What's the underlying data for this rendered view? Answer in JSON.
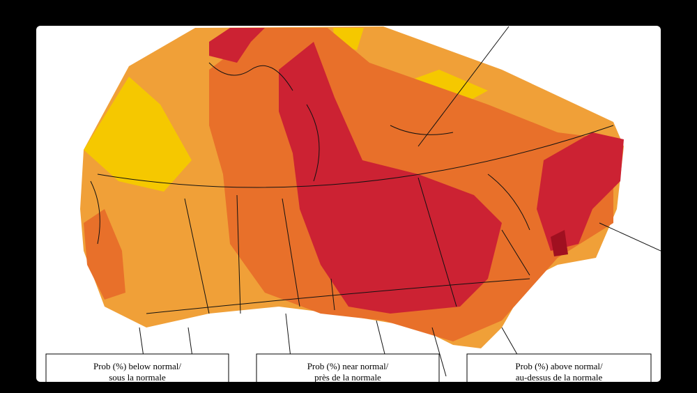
{
  "legend": [
    {
      "line1": "Prob (%) below normal/",
      "line2": "sous la normale"
    },
    {
      "line1": "Prob (%) near normal/",
      "line2": "près de la normale"
    },
    {
      "line1": "Prob (%) above normal/",
      "line2": "au-dessus de la normale"
    }
  ]
}
